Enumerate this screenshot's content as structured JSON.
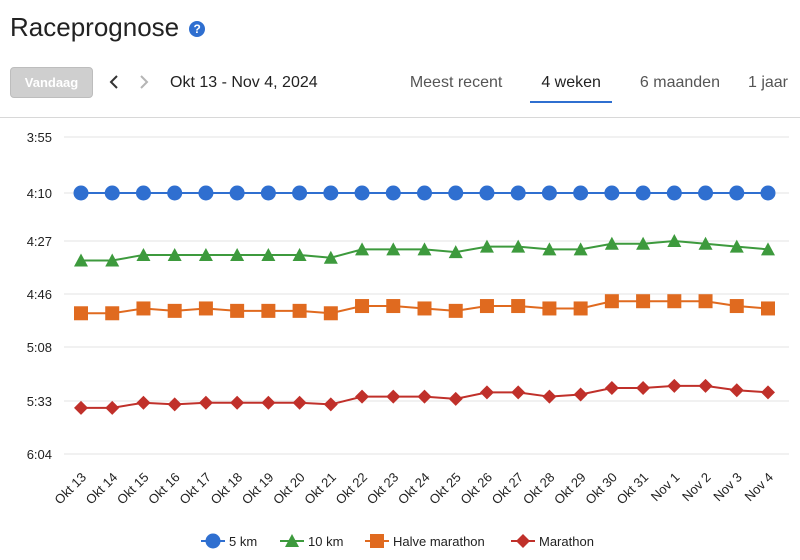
{
  "header": {
    "title": "Raceprognose",
    "help_glyph": "?"
  },
  "toolbar": {
    "today_label": "Vandaag",
    "date_range": "Okt 13 - Nov 4, 2024",
    "tabs": [
      {
        "label": "Meest recent",
        "active": false
      },
      {
        "label": "4 weken",
        "active": true
      },
      {
        "label": "6 maanden",
        "active": false
      },
      {
        "label": "1 jaar",
        "active": false
      }
    ]
  },
  "chart_data": {
    "type": "line",
    "y_unit": "pace (min:sec)",
    "y_ticks": [
      "3:55",
      "4:10",
      "4:27",
      "4:46",
      "5:08",
      "5:33",
      "6:04"
    ],
    "y_reversed": true,
    "categories": [
      "Okt 13",
      "Okt 14",
      "Okt 15",
      "Okt 16",
      "Okt 17",
      "Okt 18",
      "Okt 19",
      "Okt 20",
      "Okt 21",
      "Okt 22",
      "Okt 23",
      "Okt 24",
      "Okt 25",
      "Okt 26",
      "Okt 27",
      "Okt 28",
      "Okt 29",
      "Okt 30",
      "Okt 31",
      "Nov 1",
      "Nov 2",
      "Nov 3",
      "Nov 4"
    ],
    "series": [
      {
        "name": "5 km",
        "color": "#2f6fd0",
        "marker": "circle",
        "values": [
          "4:10",
          "4:10",
          "4:10",
          "4:10",
          "4:10",
          "4:10",
          "4:10",
          "4:10",
          "4:10",
          "4:10",
          "4:10",
          "4:10",
          "4:10",
          "4:10",
          "4:10",
          "4:10",
          "4:10",
          "4:10",
          "4:10",
          "4:10",
          "4:10",
          "4:10",
          "4:10"
        ]
      },
      {
        "name": "10 km",
        "color": "#3d9a3d",
        "marker": "triangle",
        "values": [
          "4:34",
          "4:34",
          "4:32",
          "4:32",
          "4:32",
          "4:32",
          "4:32",
          "4:32",
          "4:33",
          "4:30",
          "4:30",
          "4:30",
          "4:31",
          "4:29",
          "4:29",
          "4:30",
          "4:30",
          "4:28",
          "4:28",
          "4:27",
          "4:28",
          "4:29",
          "4:30"
        ]
      },
      {
        "name": "Halve marathon",
        "color": "#e06a1f",
        "marker": "square",
        "values": [
          "4:54",
          "4:54",
          "4:52",
          "4:53",
          "4:52",
          "4:53",
          "4:53",
          "4:53",
          "4:54",
          "4:51",
          "4:51",
          "4:52",
          "4:53",
          "4:51",
          "4:51",
          "4:52",
          "4:52",
          "4:49",
          "4:49",
          "4:49",
          "4:49",
          "4:51",
          "4:52"
        ]
      },
      {
        "name": "Marathon",
        "color": "#c0302a",
        "marker": "diamond",
        "values": [
          "5:37",
          "5:37",
          "5:34",
          "5:35",
          "5:34",
          "5:34",
          "5:34",
          "5:34",
          "5:35",
          "5:31",
          "5:31",
          "5:31",
          "5:32",
          "5:29",
          "5:29",
          "5:31",
          "5:30",
          "5:27",
          "5:27",
          "5:26",
          "5:26",
          "5:28",
          "5:29"
        ]
      }
    ],
    "grid": true,
    "legend_position": "bottom"
  }
}
